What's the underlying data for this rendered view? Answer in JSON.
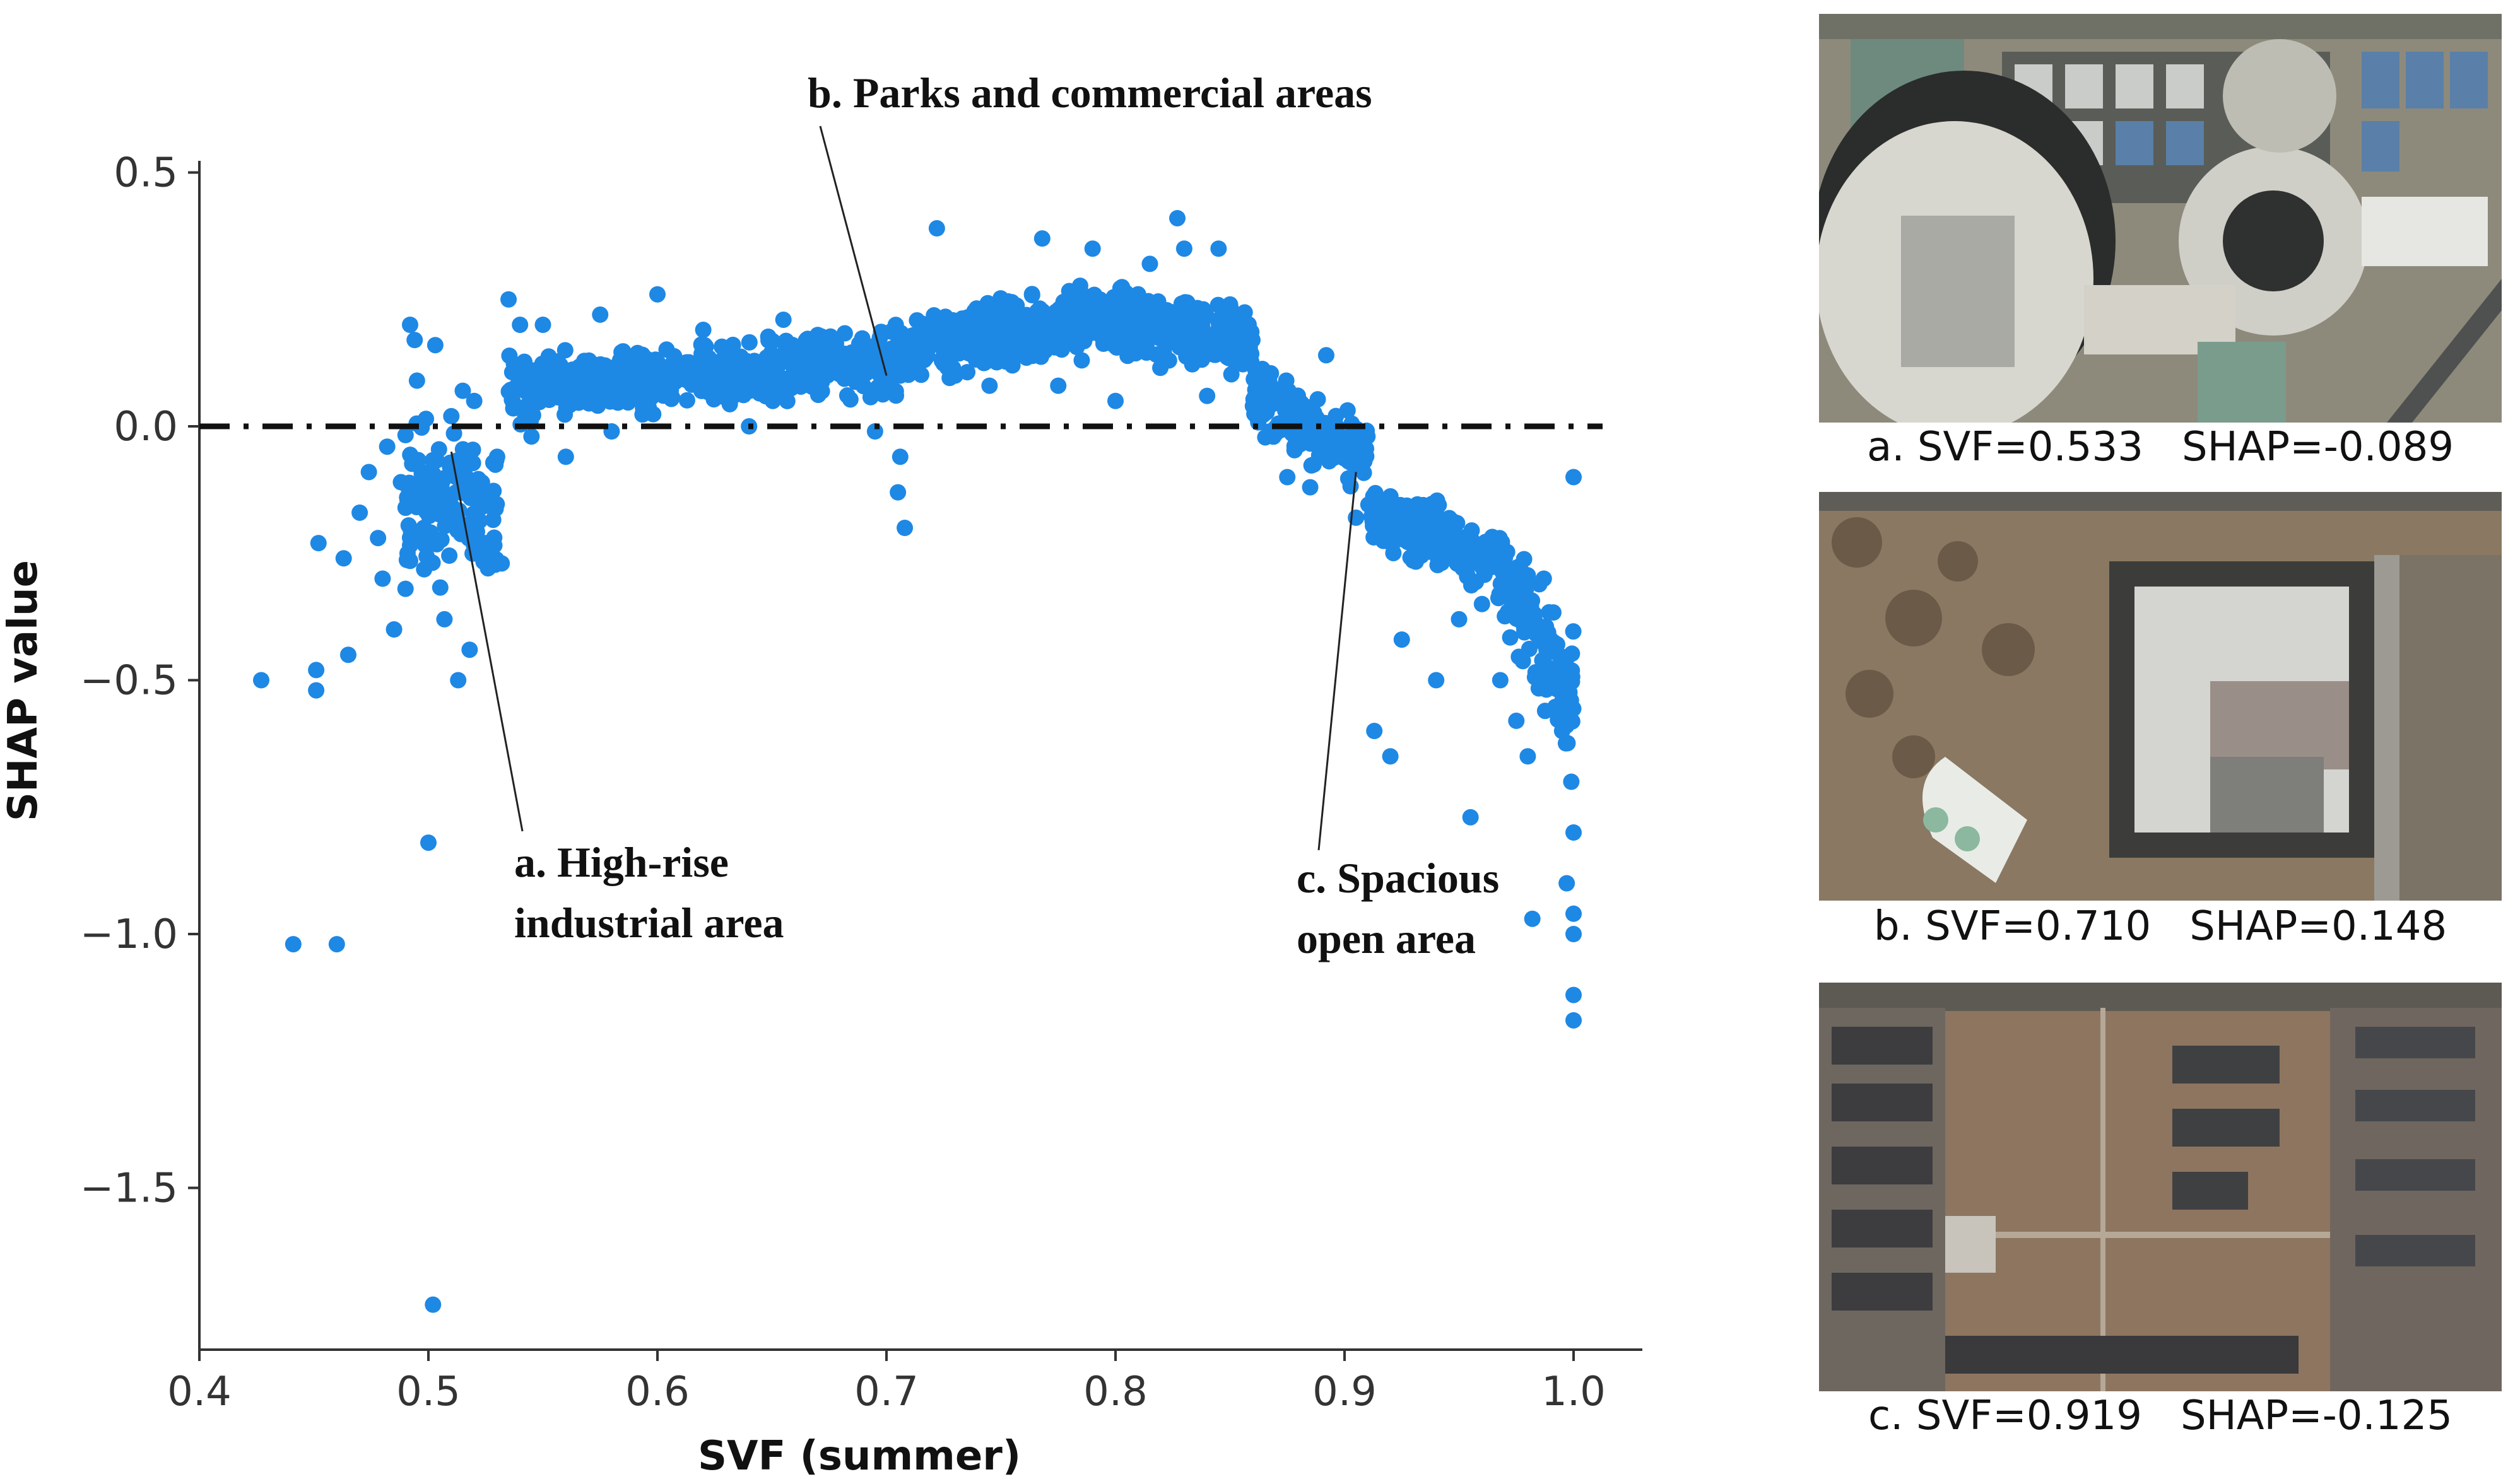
{
  "chart_data": {
    "type": "scatter",
    "xlabel": "SVF (summer)",
    "ylabel": "SHAP value",
    "xlim": [
      0.4,
      1.0
    ],
    "ylim": [
      -1.8,
      0.5
    ],
    "xticks": [
      "0.4",
      "0.5",
      "0.6",
      "0.7",
      "0.8",
      "0.9",
      "1.0"
    ],
    "yticks": [
      "0.5",
      "0.0",
      "−0.5",
      "−1.0",
      "−1.5"
    ],
    "reference_line": {
      "y": 0.0,
      "style": "dash-dot"
    },
    "point_color": "#1e88e5",
    "annotations": [
      {
        "id": "a",
        "lines": [
          "a. High-rise",
          "industrial area"
        ],
        "point": [
          0.51,
          -0.05
        ]
      },
      {
        "id": "b",
        "lines": [
          "b. Parks and commercial areas"
        ],
        "point": [
          0.7,
          0.1
        ]
      },
      {
        "id": "c",
        "lines": [
          "c. Spacious",
          "open area"
        ],
        "point": [
          0.905,
          -0.09
        ]
      }
    ],
    "points": [
      [
        0.427,
        -0.5
      ],
      [
        0.441,
        -1.02
      ],
      [
        0.451,
        -0.48
      ],
      [
        0.451,
        -0.52
      ],
      [
        0.452,
        -0.23
      ],
      [
        0.46,
        -1.02
      ],
      [
        0.463,
        -0.26
      ],
      [
        0.465,
        -0.45
      ],
      [
        0.47,
        -0.17
      ],
      [
        0.474,
        -0.09
      ],
      [
        0.478,
        -0.22
      ],
      [
        0.48,
        -0.3
      ],
      [
        0.482,
        -0.04
      ],
      [
        0.485,
        -0.4
      ],
      [
        0.488,
        -0.11
      ],
      [
        0.49,
        -0.32
      ],
      [
        0.492,
        0.2
      ],
      [
        0.494,
        0.17
      ],
      [
        0.495,
        0.09
      ],
      [
        0.498,
        -0.2
      ],
      [
        0.5,
        -0.82
      ],
      [
        0.502,
        -1.73
      ],
      [
        0.503,
        0.16
      ],
      [
        0.507,
        -0.38
      ],
      [
        0.51,
        0.02
      ],
      [
        0.513,
        -0.5
      ],
      [
        0.515,
        0.07
      ],
      [
        0.518,
        -0.44
      ],
      [
        0.52,
        0.05
      ],
      [
        0.525,
        -0.23
      ],
      [
        0.53,
        -0.06
      ],
      [
        0.532,
        -0.27
      ],
      [
        0.535,
        0.25
      ],
      [
        0.54,
        0.2
      ],
      [
        0.545,
        -0.02
      ],
      [
        0.55,
        0.2
      ],
      [
        0.56,
        -0.06
      ],
      [
        0.575,
        0.22
      ],
      [
        0.58,
        -0.01
      ],
      [
        0.6,
        0.26
      ],
      [
        0.62,
        0.19
      ],
      [
        0.64,
        0.0
      ],
      [
        0.655,
        0.21
      ],
      [
        0.67,
        0.18
      ],
      [
        0.695,
        -0.01
      ],
      [
        0.705,
        -0.13
      ],
      [
        0.706,
        -0.06
      ],
      [
        0.708,
        -0.2
      ],
      [
        0.712,
        0.14
      ],
      [
        0.722,
        0.39
      ],
      [
        0.73,
        0.1
      ],
      [
        0.745,
        0.08
      ],
      [
        0.755,
        0.12
      ],
      [
        0.768,
        0.37
      ],
      [
        0.775,
        0.08
      ],
      [
        0.79,
        0.35
      ],
      [
        0.8,
        0.05
      ],
      [
        0.815,
        0.32
      ],
      [
        0.827,
        0.41
      ],
      [
        0.83,
        0.35
      ],
      [
        0.84,
        0.06
      ],
      [
        0.845,
        0.35
      ],
      [
        0.85,
        0.24
      ],
      [
        0.86,
        0.04
      ],
      [
        0.875,
        -0.1
      ],
      [
        0.885,
        -0.12
      ],
      [
        0.892,
        0.14
      ],
      [
        0.905,
        -0.18
      ],
      [
        0.91,
        -0.02
      ],
      [
        0.913,
        -0.6
      ],
      [
        0.92,
        -0.65
      ],
      [
        0.925,
        -0.42
      ],
      [
        0.93,
        -0.26
      ],
      [
        0.94,
        -0.5
      ],
      [
        0.95,
        -0.38
      ],
      [
        0.955,
        -0.77
      ],
      [
        0.96,
        -0.35
      ],
      [
        0.968,
        -0.5
      ],
      [
        0.975,
        -0.58
      ],
      [
        0.98,
        -0.65
      ],
      [
        0.982,
        -0.97
      ],
      [
        0.987,
        -0.3
      ],
      [
        0.99,
        -0.43
      ],
      [
        0.995,
        -0.6
      ],
      [
        0.997,
        -0.9
      ],
      [
        1.0,
        -0.1
      ],
      [
        1.0,
        -0.96
      ],
      [
        1.0,
        -1.0
      ],
      [
        1.0,
        -1.12
      ],
      [
        1.0,
        -1.17
      ],
      [
        1.0,
        -0.8
      ],
      [
        0.999,
        -0.7
      ]
    ]
  },
  "panels": [
    {
      "caption": "a. SVF=0.533   SHAP=-0.089"
    },
    {
      "caption": "b. SVF=0.710   SHAP=0.148"
    },
    {
      "caption": "c. SVF=0.919   SHAP=-0.125"
    }
  ]
}
